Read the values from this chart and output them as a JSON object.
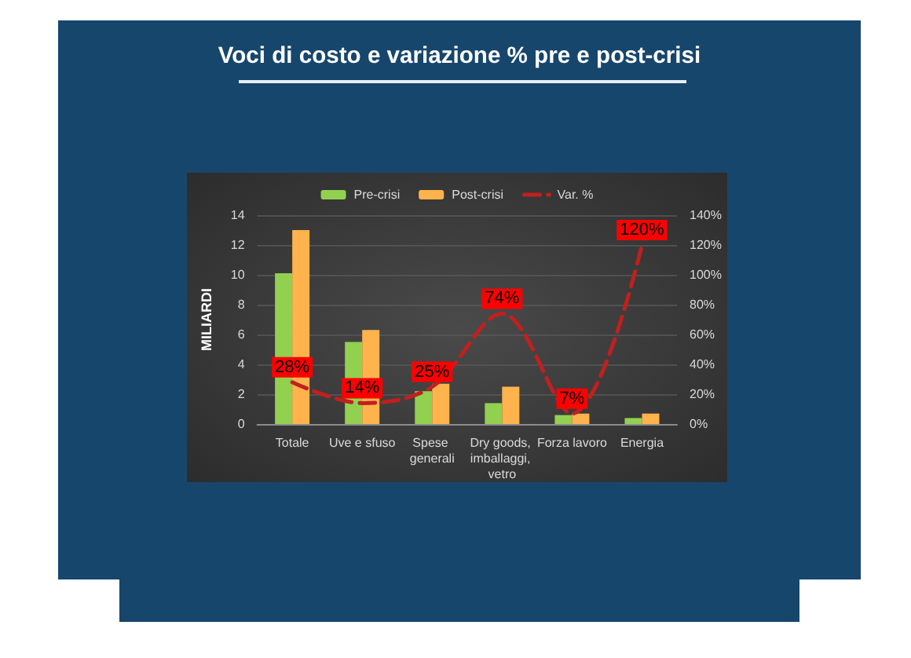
{
  "chart_data": {
    "type": "bar",
    "title": "Voci di costo e variazione % pre e post-crisi",
    "ylabel": "MILIARDI",
    "categories": [
      "Totale",
      "Uve e sfuso",
      "Spese generali",
      "Dry goods, imballaggi, vetro",
      "Forza lavoro",
      "Energia"
    ],
    "series": [
      {
        "name": "Pre-crisi",
        "color": "#92d050",
        "values": [
          10.1,
          5.5,
          2.2,
          1.4,
          0.6,
          0.4
        ]
      },
      {
        "name": "Post-crisi",
        "color": "#ffb34d",
        "values": [
          13.0,
          6.3,
          2.7,
          2.5,
          0.7,
          0.7
        ]
      },
      {
        "name": "Var. %",
        "type": "line",
        "axis": "y2",
        "color": "#c0201e",
        "line_style": "dashed",
        "marker": "none",
        "values": [
          28,
          14,
          25,
          74,
          7,
          120
        ],
        "value_labels": [
          "28%",
          "14%",
          "25%",
          "74%",
          "7%",
          "120%"
        ]
      }
    ],
    "ylim": [
      0,
      14
    ],
    "yticks": [
      0,
      2,
      4,
      6,
      8,
      10,
      12,
      14
    ],
    "y2lim": [
      0,
      140
    ],
    "y2ticks": [
      {
        "value": 0,
        "label": "0%"
      },
      {
        "value": 20,
        "label": "20%"
      },
      {
        "value": 40,
        "label": "40%"
      },
      {
        "value": 60,
        "label": "60%"
      },
      {
        "value": 80,
        "label": "80%"
      },
      {
        "value": 100,
        "label": "100%"
      },
      {
        "value": 120,
        "label": "120%"
      },
      {
        "value": 140,
        "label": "140%"
      }
    ],
    "grid": "y",
    "legend": "top"
  }
}
